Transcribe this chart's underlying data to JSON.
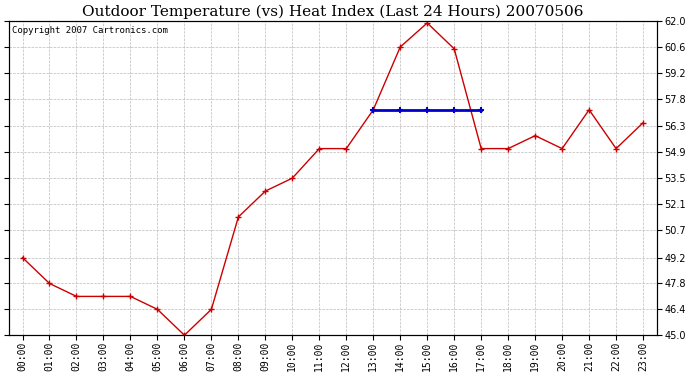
{
  "title": "Outdoor Temperature (vs) Heat Index (Last 24 Hours) 20070506",
  "copyright": "Copyright 2007 Cartronics.com",
  "hours": [
    "00:00",
    "01:00",
    "02:00",
    "03:00",
    "04:00",
    "05:00",
    "06:00",
    "07:00",
    "08:00",
    "09:00",
    "10:00",
    "11:00",
    "12:00",
    "13:00",
    "14:00",
    "15:00",
    "16:00",
    "17:00",
    "18:00",
    "19:00",
    "20:00",
    "21:00",
    "22:00",
    "23:00"
  ],
  "temp_values": [
    49.2,
    47.8,
    47.1,
    47.1,
    47.1,
    46.4,
    45.0,
    46.4,
    51.4,
    52.8,
    53.5,
    55.1,
    55.1,
    57.2,
    60.6,
    61.9,
    60.5,
    55.1,
    55.1,
    55.8,
    55.1,
    57.2,
    55.1,
    56.5
  ],
  "heat_values": [
    null,
    null,
    null,
    null,
    null,
    null,
    null,
    null,
    null,
    null,
    null,
    null,
    null,
    57.2,
    57.2,
    57.2,
    57.2,
    57.2,
    null,
    null,
    null,
    null,
    null,
    null
  ],
  "temp_color": "#cc0000",
  "heat_color": "#0000cc",
  "bg_color": "#ffffff",
  "grid_color": "#bbbbbb",
  "ylim_min": 45.0,
  "ylim_max": 62.0,
  "yticks": [
    45.0,
    46.4,
    47.8,
    49.2,
    50.7,
    52.1,
    53.5,
    54.9,
    56.3,
    57.8,
    59.2,
    60.6,
    62.0
  ],
  "title_fontsize": 11,
  "copyright_fontsize": 6.5,
  "tick_fontsize": 7
}
